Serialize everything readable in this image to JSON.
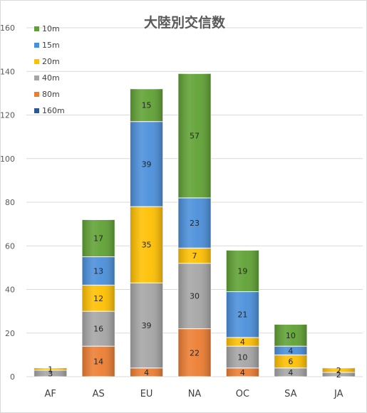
{
  "chart_data": {
    "type": "bar",
    "stacked": true,
    "title": "大陸別交信数",
    "xlabel": "",
    "ylabel": "",
    "ylim": [
      0,
      160
    ],
    "yticks": [
      0,
      20,
      40,
      60,
      80,
      100,
      120,
      140,
      160
    ],
    "grid": true,
    "legend_position": "top-left",
    "categories": [
      "AF",
      "AS",
      "EU",
      "NA",
      "OC",
      "SA",
      "JA"
    ],
    "series": [
      {
        "name": "160m",
        "color": "#2e5597",
        "values": [
          0,
          0,
          0,
          0,
          0,
          0,
          0
        ],
        "labels": [
          "",
          "",
          "",
          "",
          "",
          "",
          ""
        ]
      },
      {
        "name": "80m",
        "color": "#ed7d31",
        "values": [
          0,
          14,
          4,
          22,
          4,
          0,
          0
        ],
        "labels": [
          "",
          "14",
          "4",
          "22",
          "4",
          "",
          ""
        ]
      },
      {
        "name": "40m",
        "color": "#a5a5a5",
        "values": [
          3,
          16,
          39,
          30,
          10,
          4,
          2
        ],
        "labels": [
          "3",
          "16",
          "39",
          "30",
          "10",
          "4",
          "2"
        ]
      },
      {
        "name": "20m",
        "color": "#ffc000",
        "values": [
          1,
          12,
          35,
          7,
          4,
          6,
          2
        ],
        "labels": [
          "1",
          "12",
          "35",
          "7",
          "4",
          "6",
          "2"
        ]
      },
      {
        "name": "15m",
        "color": "#4a8fdb",
        "values": [
          0,
          13,
          39,
          23,
          21,
          4,
          0
        ],
        "labels": [
          "",
          "13",
          "39",
          "23",
          "21",
          "4",
          ""
        ]
      },
      {
        "name": "10m",
        "color": "#5fa133",
        "values": [
          0,
          17,
          15,
          57,
          19,
          10,
          0
        ],
        "labels": [
          "",
          "17",
          "15",
          "57",
          "19",
          "10",
          ""
        ]
      }
    ],
    "legend_order": [
      "10m",
      "15m",
      "20m",
      "40m",
      "80m",
      "160m"
    ]
  }
}
